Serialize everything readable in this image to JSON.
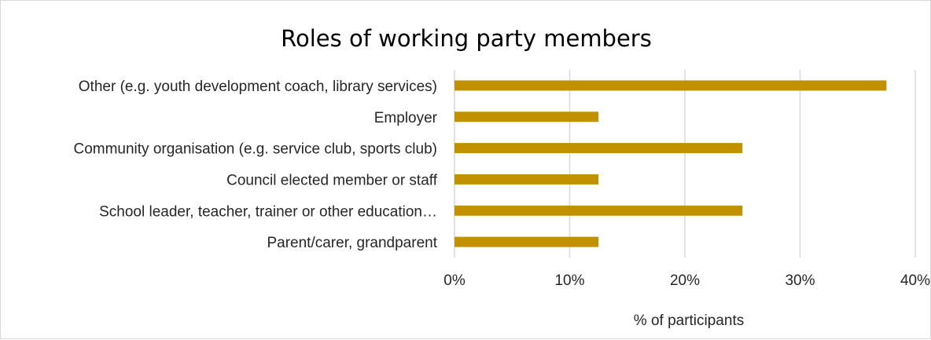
{
  "chart_data": {
    "type": "bar",
    "orientation": "horizontal",
    "title": "Roles of working party members",
    "xlabel": "% of participants",
    "ylabel": "",
    "categories": [
      "Other (e.g. youth development coach, library services)",
      "Employer",
      "Community organisation (e.g. service club, sports club)",
      "Council elected member or staff",
      "School leader, teacher, trainer or other education…",
      "Parent/carer, grandparent"
    ],
    "values": [
      37.5,
      12.5,
      25,
      12.5,
      25,
      12.5
    ],
    "unit": "%",
    "xlim": [
      0,
      40
    ],
    "xticks": [
      "0%",
      "10%",
      "20%",
      "30%",
      "40%"
    ],
    "bar_color": "#c29100",
    "grid": true,
    "legend": "none"
  }
}
